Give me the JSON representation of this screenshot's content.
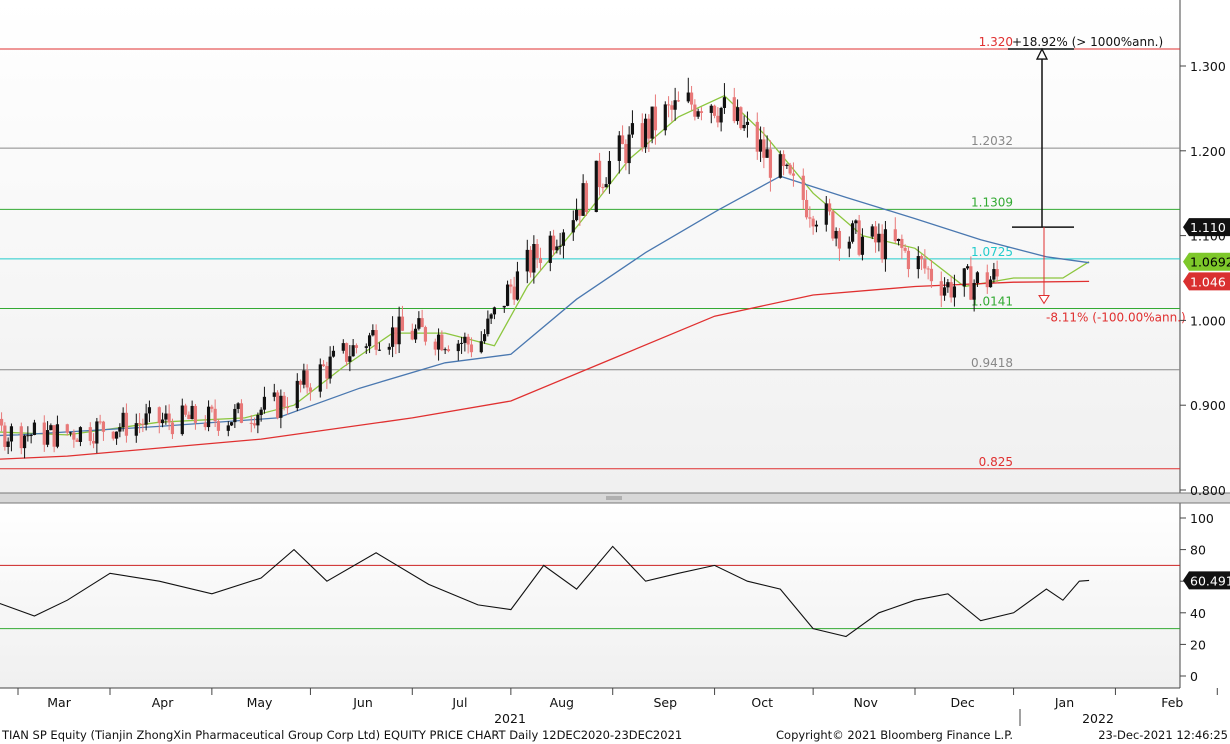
{
  "footer": {
    "left": "TIAN SP Equity (Tianjin ZhongXin Pharmaceutical Group Corp Ltd) EQUITY PRICE CHART  Daily 12DEC2020-23DEC2021",
    "center": "Copyright© 2021 Bloomberg Finance L.P.",
    "right": "23-Dec-2021 12:46:25"
  },
  "chart_data": [
    {
      "type": "candlestick",
      "ylim": [
        0.79,
        1.36
      ],
      "y_ticks": [
        0.8,
        0.9,
        1.0,
        1.1,
        1.2,
        1.3
      ],
      "y_tick_labels": [
        "0.800",
        "0.900",
        "1.000",
        "1.100",
        "1.200",
        "1.300"
      ],
      "x_months": [
        "Feb",
        "Mar",
        "Apr",
        "May",
        "Jun",
        "Jul",
        "Aug",
        "Sep",
        "Oct",
        "Nov",
        "Dec",
        "Jan",
        "Feb"
      ],
      "x_month_ticks": [
        "2021-01-31",
        "2021-02-28",
        "2021-03-31",
        "2021-04-30",
        "2021-05-31",
        "2021-06-30",
        "2021-07-31",
        "2021-08-31",
        "2021-09-30",
        "2021-10-31",
        "2021-11-30",
        "2021-12-31",
        "2022-01-31"
      ],
      "x_years": [
        "2021",
        "2022"
      ],
      "fib_levels": [
        {
          "value": 1.32,
          "label": "1.320",
          "color": "#e03030"
        },
        {
          "value": 1.2032,
          "label": "1.2032",
          "color": "#888888"
        },
        {
          "value": 1.1309,
          "label": "1.1309",
          "color": "#33aa33"
        },
        {
          "value": 1.0725,
          "label": "1.0725",
          "color": "#22cccc"
        },
        {
          "value": 1.0141,
          "label": "1.0141",
          "color": "#33aa33"
        },
        {
          "value": 0.9418,
          "label": "0.9418",
          "color": "#888888"
        },
        {
          "value": 0.825,
          "label": "0.825",
          "color": "#e03030"
        }
      ],
      "annotation_up": "+18.92% (> 1000%ann.)",
      "annotation_down": "-8.11% (-100.00%ann.)",
      "measure": {
        "from": 1.11,
        "to": 1.32,
        "down_to": 1.02
      },
      "last_value_tags": [
        {
          "value": 1.11,
          "label": "1.110",
          "bg": "#111111",
          "fg": "#ffffff"
        },
        {
          "value": 1.0692,
          "label": "1.0692",
          "bg": "#7ec82a",
          "fg": "#000000"
        },
        {
          "value": 1.046,
          "label": "1.046",
          "bg": "#d93030",
          "fg": "#ffffff"
        }
      ],
      "candle_up_color": "#111111",
      "candle_down_color": "#e87878",
      "moving_averages": [
        {
          "color": "#8cc63e",
          "points": [
            [
              "2020-12-20",
              0.87
            ],
            [
              "2021-01-15",
              0.87
            ],
            [
              "2021-02-15",
              0.865
            ],
            [
              "2021-03-15",
              0.88
            ],
            [
              "2021-04-10",
              0.885
            ],
            [
              "2021-04-25",
              0.9
            ],
            [
              "2021-05-10",
              0.945
            ],
            [
              "2021-05-25",
              0.985
            ],
            [
              "2021-06-10",
              0.985
            ],
            [
              "2021-06-25",
              0.97
            ],
            [
              "2021-07-05",
              1.04
            ],
            [
              "2021-07-20",
              1.11
            ],
            [
              "2021-08-05",
              1.19
            ],
            [
              "2021-08-20",
              1.24
            ],
            [
              "2021-09-03",
              1.265
            ],
            [
              "2021-09-15",
              1.22
            ],
            [
              "2021-09-30",
              1.15
            ],
            [
              "2021-10-15",
              1.1
            ],
            [
              "2021-10-31",
              1.085
            ],
            [
              "2021-11-15",
              1.04
            ],
            [
              "2021-11-30",
              1.05
            ],
            [
              "2021-12-15",
              1.05
            ],
            [
              "2021-12-23",
              1.0692
            ]
          ]
        },
        {
          "color": "#4a78b0",
          "points": [
            [
              "2020-12-20",
              0.86
            ],
            [
              "2021-01-31",
              0.865
            ],
            [
              "2021-03-15",
              0.875
            ],
            [
              "2021-04-20",
              0.885
            ],
            [
              "2021-05-15",
              0.92
            ],
            [
              "2021-06-10",
              0.95
            ],
            [
              "2021-06-30",
              0.96
            ],
            [
              "2021-07-20",
              1.025
            ],
            [
              "2021-08-10",
              1.08
            ],
            [
              "2021-09-01",
              1.13
            ],
            [
              "2021-09-20",
              1.17
            ],
            [
              "2021-10-10",
              1.145
            ],
            [
              "2021-10-31",
              1.12
            ],
            [
              "2021-11-20",
              1.095
            ],
            [
              "2021-12-10",
              1.075
            ],
            [
              "2021-12-23",
              1.068
            ]
          ]
        },
        {
          "color": "#e03030",
          "points": [
            [
              "2020-12-20",
              0.83
            ],
            [
              "2021-02-15",
              0.84
            ],
            [
              "2021-04-15",
              0.86
            ],
            [
              "2021-05-31",
              0.885
            ],
            [
              "2021-06-30",
              0.905
            ],
            [
              "2021-07-31",
              0.955
            ],
            [
              "2021-08-31",
              1.005
            ],
            [
              "2021-09-30",
              1.03
            ],
            [
              "2021-10-31",
              1.04
            ],
            [
              "2021-11-30",
              1.045
            ],
            [
              "2021-12-23",
              1.046
            ]
          ]
        }
      ]
    },
    {
      "type": "line",
      "ylim": [
        -6,
        108
      ],
      "y_ticks": [
        0,
        20,
        40,
        60,
        80,
        100
      ],
      "y_tick_labels": [
        "0",
        "20",
        "40",
        "60",
        "80",
        "100"
      ],
      "upper_threshold": 70,
      "lower_threshold": 30,
      "last_value_tag": {
        "value": 60.491,
        "label": "60.491",
        "bg": "#111111",
        "fg": "#ffffff"
      },
      "series": [
        {
          "color": "#111111",
          "points": [
            [
              "2020-12-20",
              43
            ],
            [
              "2021-01-01",
              44
            ],
            [
              "2021-01-10",
              55
            ],
            [
              "2021-01-20",
              50
            ],
            [
              "2021-02-05",
              38
            ],
            [
              "2021-02-15",
              48
            ],
            [
              "2021-02-28",
              65
            ],
            [
              "2021-03-15",
              60
            ],
            [
              "2021-03-31",
              52
            ],
            [
              "2021-04-15",
              62
            ],
            [
              "2021-04-25",
              80
            ],
            [
              "2021-05-05",
              60
            ],
            [
              "2021-05-20",
              78
            ],
            [
              "2021-06-05",
              58
            ],
            [
              "2021-06-20",
              45
            ],
            [
              "2021-06-30",
              42
            ],
            [
              "2021-07-10",
              70
            ],
            [
              "2021-07-20",
              55
            ],
            [
              "2021-07-31",
              82
            ],
            [
              "2021-08-10",
              60
            ],
            [
              "2021-08-20",
              65
            ],
            [
              "2021-08-31",
              70
            ],
            [
              "2021-09-10",
              60
            ],
            [
              "2021-09-20",
              55
            ],
            [
              "2021-09-30",
              30
            ],
            [
              "2021-10-10",
              25
            ],
            [
              "2021-10-20",
              40
            ],
            [
              "2021-10-31",
              48
            ],
            [
              "2021-11-10",
              52
            ],
            [
              "2021-11-20",
              35
            ],
            [
              "2021-11-30",
              40
            ],
            [
              "2021-12-10",
              55
            ],
            [
              "2021-12-15",
              48
            ],
            [
              "2021-12-20",
              60
            ],
            [
              "2021-12-23",
              60.491
            ]
          ]
        }
      ]
    }
  ]
}
